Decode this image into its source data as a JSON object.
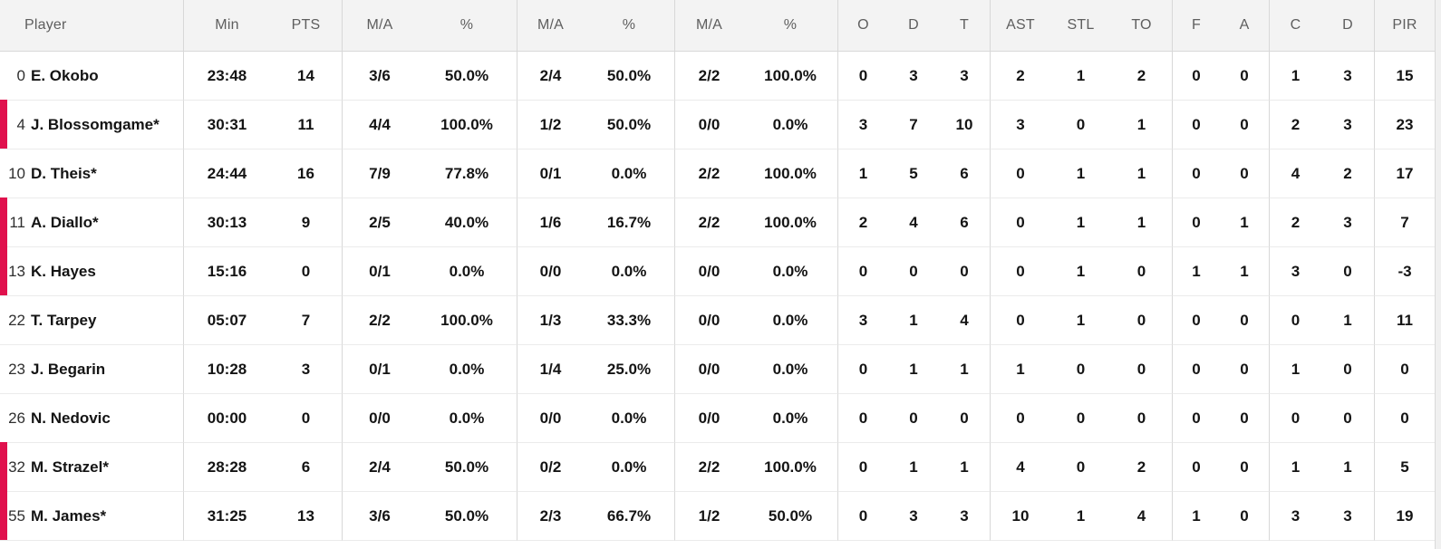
{
  "table": {
    "columns": [
      {
        "key": "player",
        "label": "Player"
      },
      {
        "key": "min",
        "label": "Min"
      },
      {
        "key": "pts",
        "label": "PTS"
      },
      {
        "key": "fg2_ma",
        "label": "M/A"
      },
      {
        "key": "fg2_pct",
        "label": "%"
      },
      {
        "key": "fg3_ma",
        "label": "M/A"
      },
      {
        "key": "fg3_pct",
        "label": "%"
      },
      {
        "key": "ft_ma",
        "label": "M/A"
      },
      {
        "key": "ft_pct",
        "label": "%"
      },
      {
        "key": "reb_o",
        "label": "O"
      },
      {
        "key": "reb_d",
        "label": "D"
      },
      {
        "key": "reb_t",
        "label": "T"
      },
      {
        "key": "ast",
        "label": "AST"
      },
      {
        "key": "stl",
        "label": "STL"
      },
      {
        "key": "to",
        "label": "TO"
      },
      {
        "key": "f",
        "label": "F"
      },
      {
        "key": "a",
        "label": "A"
      },
      {
        "key": "c",
        "label": "C"
      },
      {
        "key": "d",
        "label": "D"
      },
      {
        "key": "pir",
        "label": "PIR"
      }
    ],
    "rows": [
      {
        "number": "0",
        "name": "E. Okobo",
        "on_court": false,
        "stats": {
          "min": "23:48",
          "pts": "14",
          "fg2_ma": "3/6",
          "fg2_pct": "50.0%",
          "fg3_ma": "2/4",
          "fg3_pct": "50.0%",
          "ft_ma": "2/2",
          "ft_pct": "100.0%",
          "reb_o": "0",
          "reb_d": "3",
          "reb_t": "3",
          "ast": "2",
          "stl": "1",
          "to": "2",
          "f": "0",
          "a": "0",
          "c": "1",
          "d": "3",
          "pir": "15"
        }
      },
      {
        "number": "4",
        "name": "J. Blossomgame*",
        "on_court": true,
        "stats": {
          "min": "30:31",
          "pts": "11",
          "fg2_ma": "4/4",
          "fg2_pct": "100.0%",
          "fg3_ma": "1/2",
          "fg3_pct": "50.0%",
          "ft_ma": "0/0",
          "ft_pct": "0.0%",
          "reb_o": "3",
          "reb_d": "7",
          "reb_t": "10",
          "ast": "3",
          "stl": "0",
          "to": "1",
          "f": "0",
          "a": "0",
          "c": "2",
          "d": "3",
          "pir": "23"
        }
      },
      {
        "number": "10",
        "name": "D. Theis*",
        "on_court": false,
        "stats": {
          "min": "24:44",
          "pts": "16",
          "fg2_ma": "7/9",
          "fg2_pct": "77.8%",
          "fg3_ma": "0/1",
          "fg3_pct": "0.0%",
          "ft_ma": "2/2",
          "ft_pct": "100.0%",
          "reb_o": "1",
          "reb_d": "5",
          "reb_t": "6",
          "ast": "0",
          "stl": "1",
          "to": "1",
          "f": "0",
          "a": "0",
          "c": "4",
          "d": "2",
          "pir": "17"
        }
      },
      {
        "number": "11",
        "name": "A. Diallo*",
        "on_court": true,
        "stats": {
          "min": "30:13",
          "pts": "9",
          "fg2_ma": "2/5",
          "fg2_pct": "40.0%",
          "fg3_ma": "1/6",
          "fg3_pct": "16.7%",
          "ft_ma": "2/2",
          "ft_pct": "100.0%",
          "reb_o": "2",
          "reb_d": "4",
          "reb_t": "6",
          "ast": "0",
          "stl": "1",
          "to": "1",
          "f": "0",
          "a": "1",
          "c": "2",
          "d": "3",
          "pir": "7"
        }
      },
      {
        "number": "13",
        "name": "K. Hayes",
        "on_court": true,
        "stats": {
          "min": "15:16",
          "pts": "0",
          "fg2_ma": "0/1",
          "fg2_pct": "0.0%",
          "fg3_ma": "0/0",
          "fg3_pct": "0.0%",
          "ft_ma": "0/0",
          "ft_pct": "0.0%",
          "reb_o": "0",
          "reb_d": "0",
          "reb_t": "0",
          "ast": "0",
          "stl": "1",
          "to": "0",
          "f": "1",
          "a": "1",
          "c": "3",
          "d": "0",
          "pir": "-3"
        }
      },
      {
        "number": "22",
        "name": "T. Tarpey",
        "on_court": false,
        "stats": {
          "min": "05:07",
          "pts": "7",
          "fg2_ma": "2/2",
          "fg2_pct": "100.0%",
          "fg3_ma": "1/3",
          "fg3_pct": "33.3%",
          "ft_ma": "0/0",
          "ft_pct": "0.0%",
          "reb_o": "3",
          "reb_d": "1",
          "reb_t": "4",
          "ast": "0",
          "stl": "1",
          "to": "0",
          "f": "0",
          "a": "0",
          "c": "0",
          "d": "1",
          "pir": "11"
        }
      },
      {
        "number": "23",
        "name": "J. Begarin",
        "on_court": false,
        "stats": {
          "min": "10:28",
          "pts": "3",
          "fg2_ma": "0/1",
          "fg2_pct": "0.0%",
          "fg3_ma": "1/4",
          "fg3_pct": "25.0%",
          "ft_ma": "0/0",
          "ft_pct": "0.0%",
          "reb_o": "0",
          "reb_d": "1",
          "reb_t": "1",
          "ast": "1",
          "stl": "0",
          "to": "0",
          "f": "0",
          "a": "0",
          "c": "1",
          "d": "0",
          "pir": "0"
        }
      },
      {
        "number": "26",
        "name": "N. Nedovic",
        "on_court": false,
        "stats": {
          "min": "00:00",
          "pts": "0",
          "fg2_ma": "0/0",
          "fg2_pct": "0.0%",
          "fg3_ma": "0/0",
          "fg3_pct": "0.0%",
          "ft_ma": "0/0",
          "ft_pct": "0.0%",
          "reb_o": "0",
          "reb_d": "0",
          "reb_t": "0",
          "ast": "0",
          "stl": "0",
          "to": "0",
          "f": "0",
          "a": "0",
          "c": "0",
          "d": "0",
          "pir": "0"
        }
      },
      {
        "number": "32",
        "name": "M. Strazel*",
        "on_court": true,
        "stats": {
          "min": "28:28",
          "pts": "6",
          "fg2_ma": "2/4",
          "fg2_pct": "50.0%",
          "fg3_ma": "0/2",
          "fg3_pct": "0.0%",
          "ft_ma": "2/2",
          "ft_pct": "100.0%",
          "reb_o": "0",
          "reb_d": "1",
          "reb_t": "1",
          "ast": "4",
          "stl": "0",
          "to": "2",
          "f": "0",
          "a": "0",
          "c": "1",
          "d": "1",
          "pir": "5"
        }
      },
      {
        "number": "55",
        "name": "M. James*",
        "on_court": true,
        "stats": {
          "min": "31:25",
          "pts": "13",
          "fg2_ma": "3/6",
          "fg2_pct": "50.0%",
          "fg3_ma": "2/3",
          "fg3_pct": "66.7%",
          "ft_ma": "1/2",
          "ft_pct": "50.0%",
          "reb_o": "0",
          "reb_d": "3",
          "reb_t": "3",
          "ast": "10",
          "stl": "1",
          "to": "4",
          "f": "1",
          "a": "0",
          "c": "3",
          "d": "3",
          "pir": "19"
        }
      }
    ]
  },
  "colors": {
    "on_court_marker": "#e0114d",
    "header_bg": "#f3f3f3",
    "header_text": "#5e5e5e",
    "group_border": "#d8d8d8",
    "row_border": "#ebebeb",
    "value_text": "#141414"
  }
}
